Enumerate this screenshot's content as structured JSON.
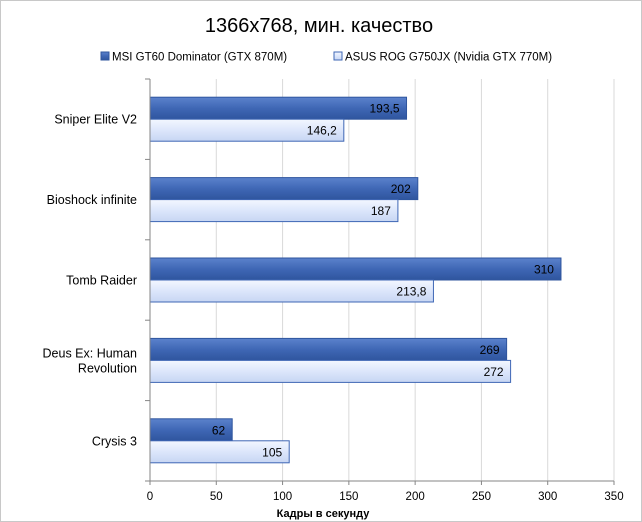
{
  "chart_data": {
    "type": "bar",
    "orientation": "horizontal",
    "title": "1366x768, мин. качество",
    "xlabel": "Кадры  в секунду",
    "ylabel": "",
    "xlim": [
      0,
      350
    ],
    "xticks": [
      0,
      50,
      100,
      150,
      200,
      250,
      300,
      350
    ],
    "grid": "vertical",
    "legend_position": "top",
    "categories": [
      "Sniper Elite V2",
      "Bioshock infinite",
      "Tomb Raider",
      "Deus Ex: Human Revolution",
      "Crysis 3"
    ],
    "category_label_lines": [
      [
        "Sniper Elite V2"
      ],
      [
        "Bioshock infinite"
      ],
      [
        "Tomb Raider"
      ],
      [
        "Deus Ex: Human",
        "Revolution"
      ],
      [
        "Crysis 3"
      ]
    ],
    "series": [
      {
        "name": "MSI GT60 Dominator (GTX 870M)",
        "values": [
          193.5,
          202,
          310,
          269,
          62
        ],
        "labels": [
          "193,5",
          "202",
          "310",
          "269",
          "62"
        ],
        "color": "#3f67b5"
      },
      {
        "name": "ASUS ROG G750JX (Nvidia GTX 770M)",
        "values": [
          146.2,
          187,
          213.8,
          272,
          105
        ],
        "labels": [
          "146,2",
          "187",
          "213,8",
          "272",
          "105"
        ],
        "color": "#dce6fb"
      }
    ]
  }
}
